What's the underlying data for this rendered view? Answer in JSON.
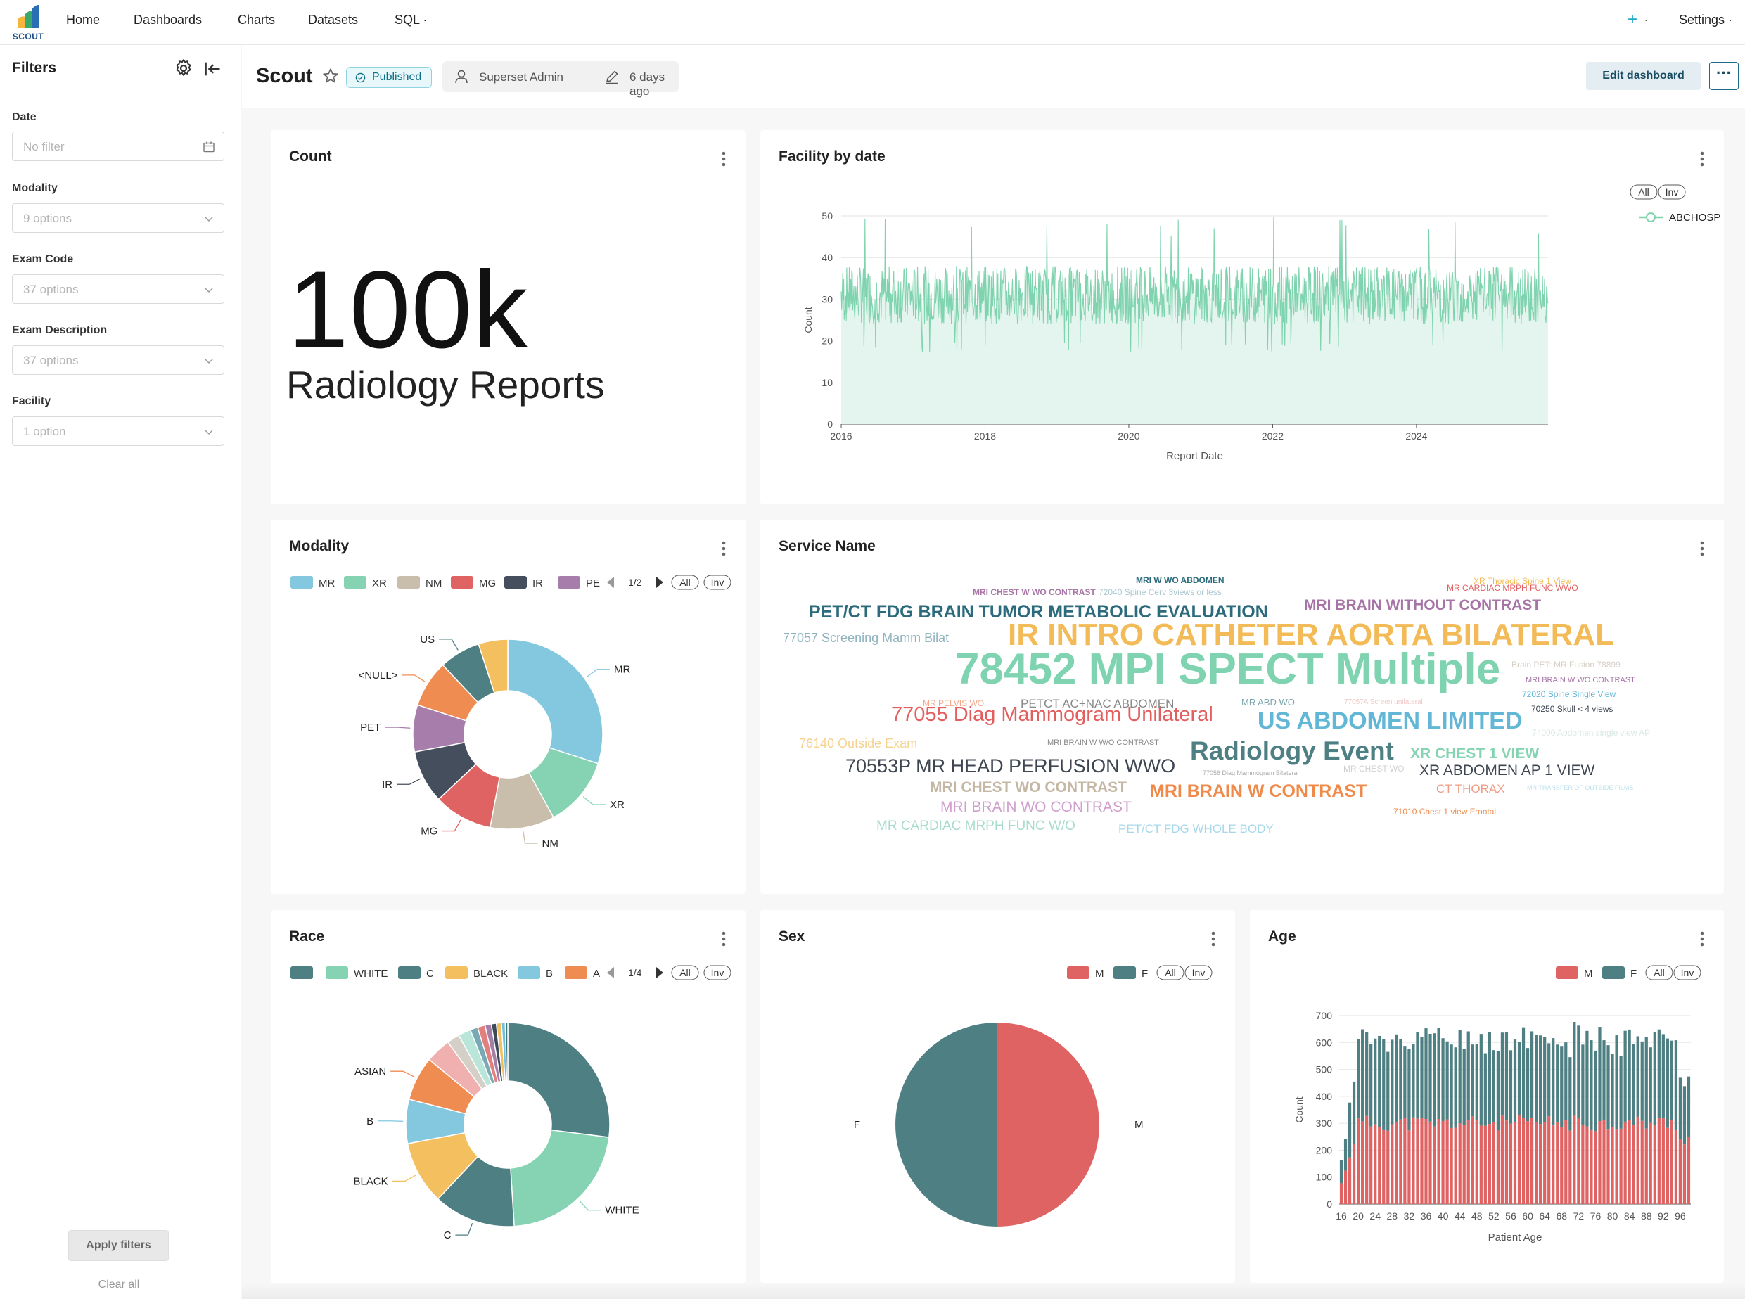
{
  "app": {
    "logo_text": "SCOUT",
    "colors": {
      "accent": "#20a7c9",
      "published_bg": "#e8f7fa",
      "published_text": "#0e6f85"
    }
  },
  "nav": {
    "items": [
      "Home",
      "Dashboards",
      "Charts",
      "Datasets",
      "SQL ·"
    ],
    "plus": "+",
    "plus_caret": "·",
    "settings": "Settings ·"
  },
  "filters": {
    "title": "Filters",
    "fields": [
      {
        "label": "Date",
        "placeholder": "No filter",
        "icon": "calendar-icon"
      },
      {
        "label": "Modality",
        "placeholder": "9 options",
        "icon": "chevron-down-icon"
      },
      {
        "label": "Exam Code",
        "placeholder": "37 options",
        "icon": "chevron-down-icon"
      },
      {
        "label": "Exam Description",
        "placeholder": "37 options",
        "icon": "chevron-down-icon"
      },
      {
        "label": "Facility",
        "placeholder": "1 option",
        "icon": "chevron-down-icon"
      }
    ],
    "apply": "Apply filters",
    "clear": "Clear all"
  },
  "header": {
    "title": "Scout",
    "status": "Published",
    "owner": "Superset Admin",
    "modified": "6 days ago",
    "edit": "Edit dashboard",
    "more": "···"
  },
  "cards": {
    "count": {
      "title": "Count",
      "big_number": "100k",
      "subheader": "Radiology Reports"
    },
    "facility": {
      "title": "Facility by date"
    },
    "modality": {
      "title": "Modality"
    },
    "service": {
      "title": "Service Name"
    },
    "race": {
      "title": "Race"
    },
    "sex": {
      "title": "Sex"
    },
    "age": {
      "title": "Age"
    }
  },
  "legend_controls": {
    "all": "All",
    "inv": "Inv"
  },
  "chart_data": [
    {
      "id": "facility",
      "type": "area",
      "xlabel": "Report Date",
      "ylabel": "Count",
      "x_ticks": [
        "2016",
        "2018",
        "2020",
        "2022",
        "2024"
      ],
      "y_ticks": [
        0,
        10,
        20,
        30,
        40,
        50
      ],
      "ylim": [
        0,
        50
      ],
      "x_range": [
        "2016-01",
        "2025-10"
      ],
      "series": [
        {
          "name": "ABCHOSP",
          "color": "#7fd3ae",
          "typical_min": 17,
          "typical_max": 45,
          "peak": 50
        }
      ],
      "legend": "top-right",
      "grid": true
    },
    {
      "id": "modality",
      "type": "pie",
      "donut": true,
      "legend_page": "1/2",
      "legend_items": [
        {
          "name": "MR",
          "color": "#84c8e0"
        },
        {
          "name": "XR",
          "color": "#85d3b3"
        },
        {
          "name": "NM",
          "color": "#c9bdac"
        },
        {
          "name": "MG",
          "color": "#e06363"
        },
        {
          "name": "IR",
          "color": "#454e5c"
        },
        {
          "name": "PE",
          "color": "#a77dab"
        }
      ],
      "slices": [
        {
          "label": "MR",
          "value": 30,
          "color": "#84c8e0"
        },
        {
          "label": "XR",
          "value": 12,
          "color": "#85d3b3"
        },
        {
          "label": "NM",
          "value": 11,
          "color": "#c9bdac"
        },
        {
          "label": "MG",
          "value": 10,
          "color": "#e06363"
        },
        {
          "label": "IR",
          "value": 9,
          "color": "#454e5c"
        },
        {
          "label": "PET",
          "value": 8,
          "color": "#a77dab"
        },
        {
          "label": "<NULL>",
          "value": 8,
          "color": "#ef8c52"
        },
        {
          "label": "US",
          "value": 7,
          "color": "#4e7f82"
        },
        {
          "label": "",
          "value": 5,
          "color": "#f4c05f"
        }
      ]
    },
    {
      "id": "race",
      "type": "pie",
      "donut": true,
      "legend_page": "1/4",
      "legend_items": [
        {
          "name": "",
          "color": "#4e7f82"
        },
        {
          "name": "WHITE",
          "color": "#85d3b3"
        },
        {
          "name": "C",
          "color": "#4e7f82"
        },
        {
          "name": "BLACK",
          "color": "#f4c05f"
        },
        {
          "name": "B",
          "color": "#84c8e0"
        },
        {
          "name": "A",
          "color": "#ef8c52"
        }
      ],
      "slices": [
        {
          "label": "",
          "value": 27,
          "color": "#4e7f82"
        },
        {
          "label": "WHITE",
          "value": 22,
          "color": "#85d3b3"
        },
        {
          "label": "C",
          "value": 13,
          "color": "#4e7f82"
        },
        {
          "label": "BLACK",
          "value": 10,
          "color": "#f4c05f"
        },
        {
          "label": "B",
          "value": 7,
          "color": "#84c8e0"
        },
        {
          "label": "ASIAN",
          "value": 7,
          "color": "#ef8c52"
        },
        {
          "label": "",
          "value": 4,
          "color": "#f0b0b0"
        },
        {
          "label": "",
          "value": 2,
          "color": "#d4cfc7"
        },
        {
          "label": "",
          "value": 2,
          "color": "#b9e6d9"
        },
        {
          "label": "",
          "value": 1.2,
          "color": "#7aa9b6"
        },
        {
          "label": "",
          "value": 1.2,
          "color": "#e27f7f"
        },
        {
          "label": "",
          "value": 1,
          "color": "#a47fa7"
        },
        {
          "label": "",
          "value": 0.8,
          "color": "#3f4a59"
        },
        {
          "label": "",
          "value": 0.8,
          "color": "#f4c05f"
        },
        {
          "label": "",
          "value": 0.6,
          "color": "#6fbfde"
        },
        {
          "label": "",
          "value": 0.4,
          "color": "#3f7a7e"
        }
      ]
    },
    {
      "id": "sex",
      "type": "pie",
      "legend_items": [
        {
          "name": "M",
          "color": "#e06363"
        },
        {
          "name": "F",
          "color": "#4e7f82"
        }
      ],
      "slices": [
        {
          "label": "M",
          "value": 50,
          "color": "#e06363"
        },
        {
          "label": "F",
          "value": 50,
          "color": "#4e7f82"
        }
      ]
    },
    {
      "id": "age",
      "type": "bar",
      "stacked": true,
      "xlabel": "Patient Age",
      "ylabel": "Count",
      "ylim": [
        0,
        700
      ],
      "y_ticks": [
        0,
        100,
        200,
        300,
        400,
        500,
        600,
        700
      ],
      "x_ticks": [
        "16",
        "20",
        "24",
        "28",
        "32",
        "36",
        "40",
        "44",
        "48",
        "52",
        "56",
        "60",
        "64",
        "68",
        "72",
        "76",
        "80",
        "84",
        "88",
        "92",
        "96"
      ],
      "x_range": [
        16,
        98
      ],
      "series": [
        {
          "name": "M",
          "color": "#e06363",
          "typical": 300
        },
        {
          "name": "F",
          "color": "#4e7f82",
          "typical": 310
        }
      ],
      "legend": "top-right"
    },
    {
      "id": "service",
      "type": "wordcloud",
      "words": [
        {
          "text": "78452 MPI SPECT Multiple",
          "color": "#7fd3b0",
          "size": 62,
          "weight": "bold"
        },
        {
          "text": "IR INTRO CATHETER AORTA BILATERAL",
          "color": "#f3bb57",
          "size": 44,
          "weight": "bold"
        },
        {
          "text": "Radiology Event",
          "color": "#4e7f82",
          "size": 37,
          "weight": "bold"
        },
        {
          "text": "US ABDOMEN LIMITED",
          "color": "#62b6d6",
          "size": 34,
          "weight": "bold"
        },
        {
          "text": "77055 Diag Mammogram Unilateral",
          "color": "#e35f5f",
          "size": 29,
          "weight": "normal"
        },
        {
          "text": "PET/CT FDG BRAIN TUMOR METABOLIC EVALUATION",
          "color": "#2c6b7c",
          "size": 25,
          "weight": "bold"
        },
        {
          "text": "70553P MR HEAD PERFUSION WWO",
          "color": "#3e4652",
          "size": 27,
          "weight": "normal"
        },
        {
          "text": "MRI BRAIN W CONTRAST",
          "color": "#ef8a4a",
          "size": 25,
          "weight": "bold"
        },
        {
          "text": "MRI BRAIN WITHOUT CONTRAST",
          "color": "#a675a6",
          "size": 21,
          "weight": "bold"
        },
        {
          "text": "XR ABDOMEN AP 1 VIEW",
          "color": "#3e4652",
          "size": 21,
          "weight": "normal"
        },
        {
          "text": "MRI CHEST WO CONTRAST",
          "color": "#c4b7a4",
          "size": 21,
          "weight": "bold"
        },
        {
          "text": "MRI BRAIN WO CONTRAST",
          "color": "#cf9fce",
          "size": 21,
          "weight": "normal"
        },
        {
          "text": "XR CHEST 1 VIEW",
          "color": "#85d3b3",
          "size": 21,
          "weight": "bold"
        },
        {
          "text": "77057 Screening Mamm Bilat",
          "color": "#8fb3bd",
          "size": 18,
          "weight": "normal"
        },
        {
          "text": "PETCT AC+NAC ABDOMEN",
          "color": "#888888",
          "size": 17,
          "weight": "normal"
        },
        {
          "text": "76140 Outside Exam",
          "color": "#f6d28f",
          "size": 18,
          "weight": "normal"
        },
        {
          "text": "MR CARDIAC MRPH FUNC W/O",
          "color": "#a9dcce",
          "size": 19,
          "weight": "normal"
        },
        {
          "text": "PET/CT FDG WHOLE BODY",
          "color": "#a7d8ea",
          "size": 17,
          "weight": "normal"
        },
        {
          "text": "CT THORAX",
          "color": "#ef9c86",
          "size": 17,
          "weight": "normal"
        },
        {
          "text": "MRI CHEST W WO CONTRAST",
          "color": "#a675a6",
          "size": 12,
          "weight": "bold"
        },
        {
          "text": "MRI W WO ABDOMEN",
          "color": "#2c6b7c",
          "size": 12,
          "weight": "bold"
        },
        {
          "text": "XR Thoracic Spine 1 View",
          "color": "#f3bb57",
          "size": 12,
          "weight": "normal"
        },
        {
          "text": "MR CARDIAC MRPH FUNC WWO",
          "color": "#e35f5f",
          "size": 12,
          "weight": "normal"
        },
        {
          "text": "72040 Spine Cerv 3views or less",
          "color": "#aac8d0",
          "size": 12,
          "weight": "normal"
        },
        {
          "text": "Brain PET: MR Fusion 78899",
          "color": "#d7d0c6",
          "size": 12,
          "weight": "normal"
        },
        {
          "text": "MRI BRAIN W WO CONTRAST",
          "color": "#a675a6",
          "size": 11,
          "weight": "normal"
        },
        {
          "text": "72020 Spine Single View",
          "color": "#62b6d6",
          "size": 12,
          "weight": "normal"
        },
        {
          "text": "70250 Skull < 4 views",
          "color": "#3e4652",
          "size": 12,
          "weight": "normal"
        },
        {
          "text": "MR PELVIS WO",
          "color": "#f3a78a",
          "size": 12,
          "weight": "normal"
        },
        {
          "text": "MR ABD WO",
          "color": "#7aa4ad",
          "size": 13,
          "weight": "normal"
        },
        {
          "text": "77057A Screen unilateral",
          "color": "#f1c9c9",
          "size": 10,
          "weight": "normal"
        },
        {
          "text": "74000 Abdomen single view AP",
          "color": "#d9e9e4",
          "size": 12,
          "weight": "normal"
        },
        {
          "text": "MRI BRAIN W W/O CONTRAST",
          "color": "#888888",
          "size": 11,
          "weight": "normal"
        },
        {
          "text": "77056 Diag Mammogram Bilateral",
          "color": "#aaaaaa",
          "size": 9,
          "weight": "normal"
        },
        {
          "text": "MR CHEST WO",
          "color": "#d0d0d0",
          "size": 12,
          "weight": "normal"
        },
        {
          "text": "MR TRANSFER OF OUTSIDE FILMS",
          "color": "#bfe3f0",
          "size": 9,
          "weight": "normal"
        },
        {
          "text": "71010 Chest 1 view Frontal",
          "color": "#ef8a4a",
          "size": 12,
          "weight": "normal"
        }
      ]
    }
  ]
}
